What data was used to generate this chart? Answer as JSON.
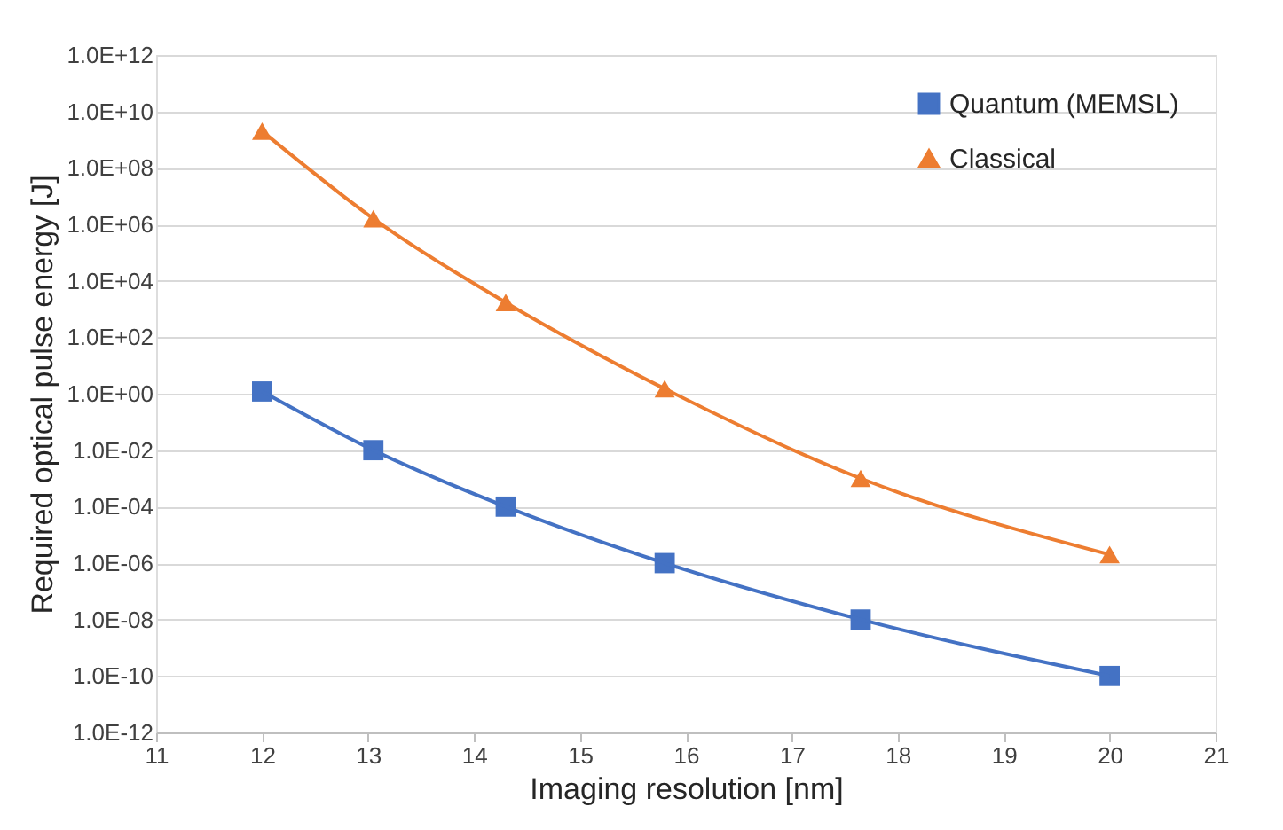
{
  "chart_data": {
    "type": "line",
    "xlabel": "Imaging resolution [nm]",
    "ylabel": "Required optical pulse energy [J]",
    "xlim": [
      11,
      21
    ],
    "xticks": [
      11,
      12,
      13,
      14,
      15,
      16,
      17,
      18,
      19,
      20,
      21
    ],
    "ylim": [
      1e-12,
      1000000000000.0
    ],
    "log": "y",
    "yticks": [
      {
        "value": 1e-12,
        "label": "1.0E-12"
      },
      {
        "value": 1e-10,
        "label": "1.0E-10"
      },
      {
        "value": 1e-08,
        "label": "1.0E-08"
      },
      {
        "value": 1e-06,
        "label": "1.0E-06"
      },
      {
        "value": 0.0001,
        "label": "1.0E-04"
      },
      {
        "value": 0.01,
        "label": "1.0E-02"
      },
      {
        "value": 1,
        "label": "1.0E+00"
      },
      {
        "value": 100.0,
        "label": "1.0E+02"
      },
      {
        "value": 10000.0,
        "label": "1.0E+04"
      },
      {
        "value": 1000000.0,
        "label": "1.0E+06"
      },
      {
        "value": 100000000.0,
        "label": "1.0E+08"
      },
      {
        "value": 10000000000.0,
        "label": "1.0E+10"
      },
      {
        "value": 1000000000000.0,
        "label": "1.0E+12"
      }
    ],
    "grid": "y",
    "legend": "top right",
    "series": [
      {
        "name": "Quantum (MEMSL)",
        "color": "#4472c4",
        "marker": "square",
        "x": [
          12,
          13.05,
          14.3,
          15.8,
          17.65,
          20
        ],
        "values": [
          1.2,
          0.01,
          0.0001,
          1e-06,
          1e-08,
          1e-10
        ]
      },
      {
        "name": "Classical",
        "color": "#ed7d31",
        "marker": "triangle",
        "x": [
          12,
          13.05,
          14.3,
          15.8,
          17.65,
          20
        ],
        "values": [
          2000000000.0,
          1600000.0,
          1700.0,
          1.5,
          0.001,
          2e-06
        ]
      }
    ]
  }
}
